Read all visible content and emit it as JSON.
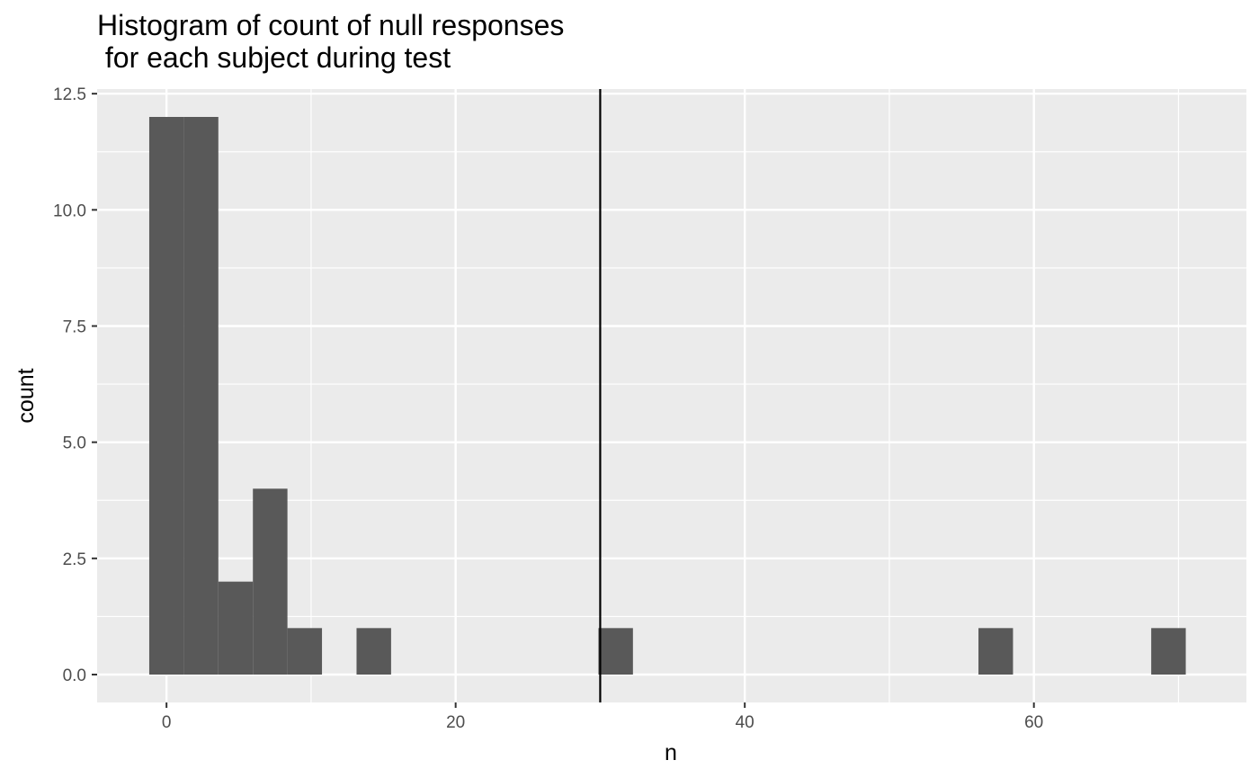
{
  "chart_data": {
    "type": "bar",
    "title": "Histogram of count of null responses\n for each subject during test",
    "xlabel": "n",
    "ylabel": "count",
    "xlim": [
      -4.8,
      74.7
    ],
    "ylim": [
      -0.6,
      12.6
    ],
    "x_ticks": [
      "0",
      "20",
      "40",
      "60"
    ],
    "x_tick_values": [
      0,
      20,
      40,
      60
    ],
    "y_ticks": [
      "0.0",
      "2.5",
      "5.0",
      "7.5",
      "10.0",
      "12.5"
    ],
    "y_tick_values": [
      0,
      2.5,
      5,
      7.5,
      10,
      12.5
    ],
    "bin_width": 2.39,
    "bins": [
      {
        "x": 0.0,
        "count": 12
      },
      {
        "x": 2.39,
        "count": 12
      },
      {
        "x": 4.78,
        "count": 2
      },
      {
        "x": 7.17,
        "count": 4
      },
      {
        "x": 9.56,
        "count": 1
      },
      {
        "x": 14.34,
        "count": 1
      },
      {
        "x": 31.07,
        "count": 1
      },
      {
        "x": 57.36,
        "count": 1
      },
      {
        "x": 69.31,
        "count": 1
      }
    ],
    "vline": {
      "x": 30,
      "color": "#000000"
    },
    "bar_color": "#595959",
    "panel_background": "#ebebeb",
    "grid_color": "#ffffff",
    "grid": true,
    "legend": "none"
  }
}
